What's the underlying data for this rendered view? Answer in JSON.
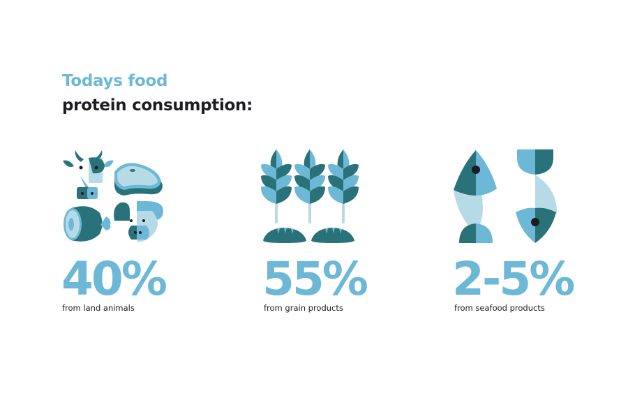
{
  "heading": {
    "line1": "Todays food",
    "line2": "protein consumption:"
  },
  "colors": {
    "accent": "#6db8d6",
    "dark": "#2a7279",
    "pale": "#b7dbe6",
    "text": "#1c1c22"
  },
  "stats": [
    {
      "value": "40%",
      "label": "from land animals",
      "icon": "land-animals-icon"
    },
    {
      "value": "55%",
      "label": "from grain products",
      "icon": "grain-icon"
    },
    {
      "value": "2-5%",
      "label": "from seafood products",
      "icon": "fish-icon"
    }
  ]
}
